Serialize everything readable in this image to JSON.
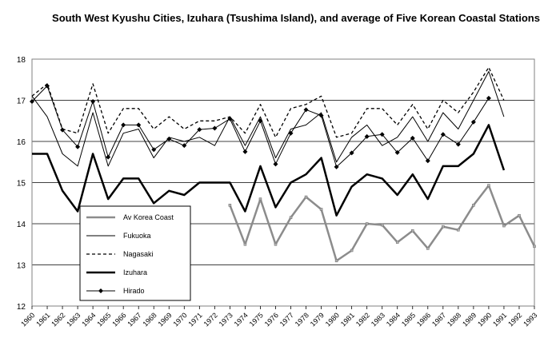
{
  "chart_data": {
    "type": "line",
    "title": "South West Kyushu Cities, Izuhara (Tsushima Island),  and average of Five  Korean Coastal Stations",
    "xlabel": "",
    "ylabel": "",
    "ylim": [
      12,
      18
    ],
    "yticks": [
      "12",
      "13",
      "14",
      "15",
      "16",
      "17",
      "18"
    ],
    "grid": "horizontal",
    "legend_position": "bottom-left, inside plot",
    "x": [
      1960,
      1961,
      1962,
      1963,
      1964,
      1965,
      1966,
      1967,
      1968,
      1969,
      1970,
      1971,
      1972,
      1973,
      1974,
      1975,
      1976,
      1977,
      1978,
      1979,
      1980,
      1981,
      1982,
      1983,
      1984,
      1985,
      1986,
      1987,
      1988,
      1989,
      1990,
      1991,
      1992,
      1993
    ],
    "series": [
      {
        "name": "Av Korea Coast",
        "color": "#8c8c8c",
        "style": "thick-gray-with-markers",
        "values": [
          null,
          null,
          null,
          null,
          null,
          null,
          null,
          null,
          null,
          null,
          null,
          null,
          null,
          14.45,
          13.5,
          14.6,
          13.5,
          14.15,
          14.65,
          14.35,
          13.1,
          13.35,
          14.0,
          13.97,
          13.55,
          13.83,
          13.4,
          13.93,
          13.85,
          14.45,
          14.93,
          13.95,
          14.2,
          13.45
        ]
      },
      {
        "name": "Fukuoka",
        "color": "#000000",
        "style": "thin-solid",
        "values": [
          17.1,
          16.6,
          15.7,
          15.4,
          16.7,
          15.4,
          16.2,
          16.3,
          15.6,
          16.1,
          16.0,
          16.1,
          15.9,
          16.6,
          15.9,
          16.6,
          15.6,
          16.3,
          16.4,
          16.7,
          15.5,
          16.1,
          16.4,
          15.9,
          16.1,
          16.6,
          16.0,
          16.7,
          16.3,
          17.0,
          17.7,
          16.6,
          null,
          null
        ]
      },
      {
        "name": "Nagasaki",
        "color": "#000000",
        "style": "dashed",
        "values": [
          17.1,
          17.4,
          16.3,
          16.2,
          17.4,
          16.2,
          16.8,
          16.8,
          16.3,
          16.6,
          16.3,
          16.5,
          16.5,
          16.6,
          16.2,
          16.9,
          16.1,
          16.8,
          16.9,
          17.1,
          16.1,
          16.2,
          16.8,
          16.8,
          16.4,
          16.9,
          16.3,
          17.0,
          16.7,
          17.2,
          17.8,
          17.0,
          null,
          null
        ]
      },
      {
        "name": "Izuhara",
        "color": "#000000",
        "style": "thick-solid",
        "values": [
          15.7,
          15.7,
          14.8,
          14.3,
          15.7,
          14.6,
          15.1,
          15.1,
          14.5,
          14.8,
          14.7,
          15.0,
          15.0,
          15.0,
          14.3,
          15.4,
          14.4,
          15.0,
          15.2,
          15.6,
          14.2,
          14.9,
          15.2,
          15.1,
          14.7,
          15.2,
          14.6,
          15.4,
          15.4,
          15.7,
          16.4,
          15.3,
          null,
          null
        ]
      },
      {
        "name": "Hirado",
        "color": "#000000",
        "style": "thin-solid-diamond-markers",
        "values": [
          16.97,
          17.35,
          16.28,
          15.87,
          16.97,
          15.62,
          16.4,
          16.4,
          15.8,
          16.06,
          15.9,
          16.29,
          16.32,
          16.55,
          15.75,
          16.5,
          15.45,
          16.2,
          16.77,
          16.63,
          15.38,
          15.72,
          16.12,
          16.17,
          15.73,
          16.08,
          15.53,
          16.17,
          15.93,
          16.47,
          17.05,
          null,
          null,
          null
        ]
      }
    ]
  }
}
